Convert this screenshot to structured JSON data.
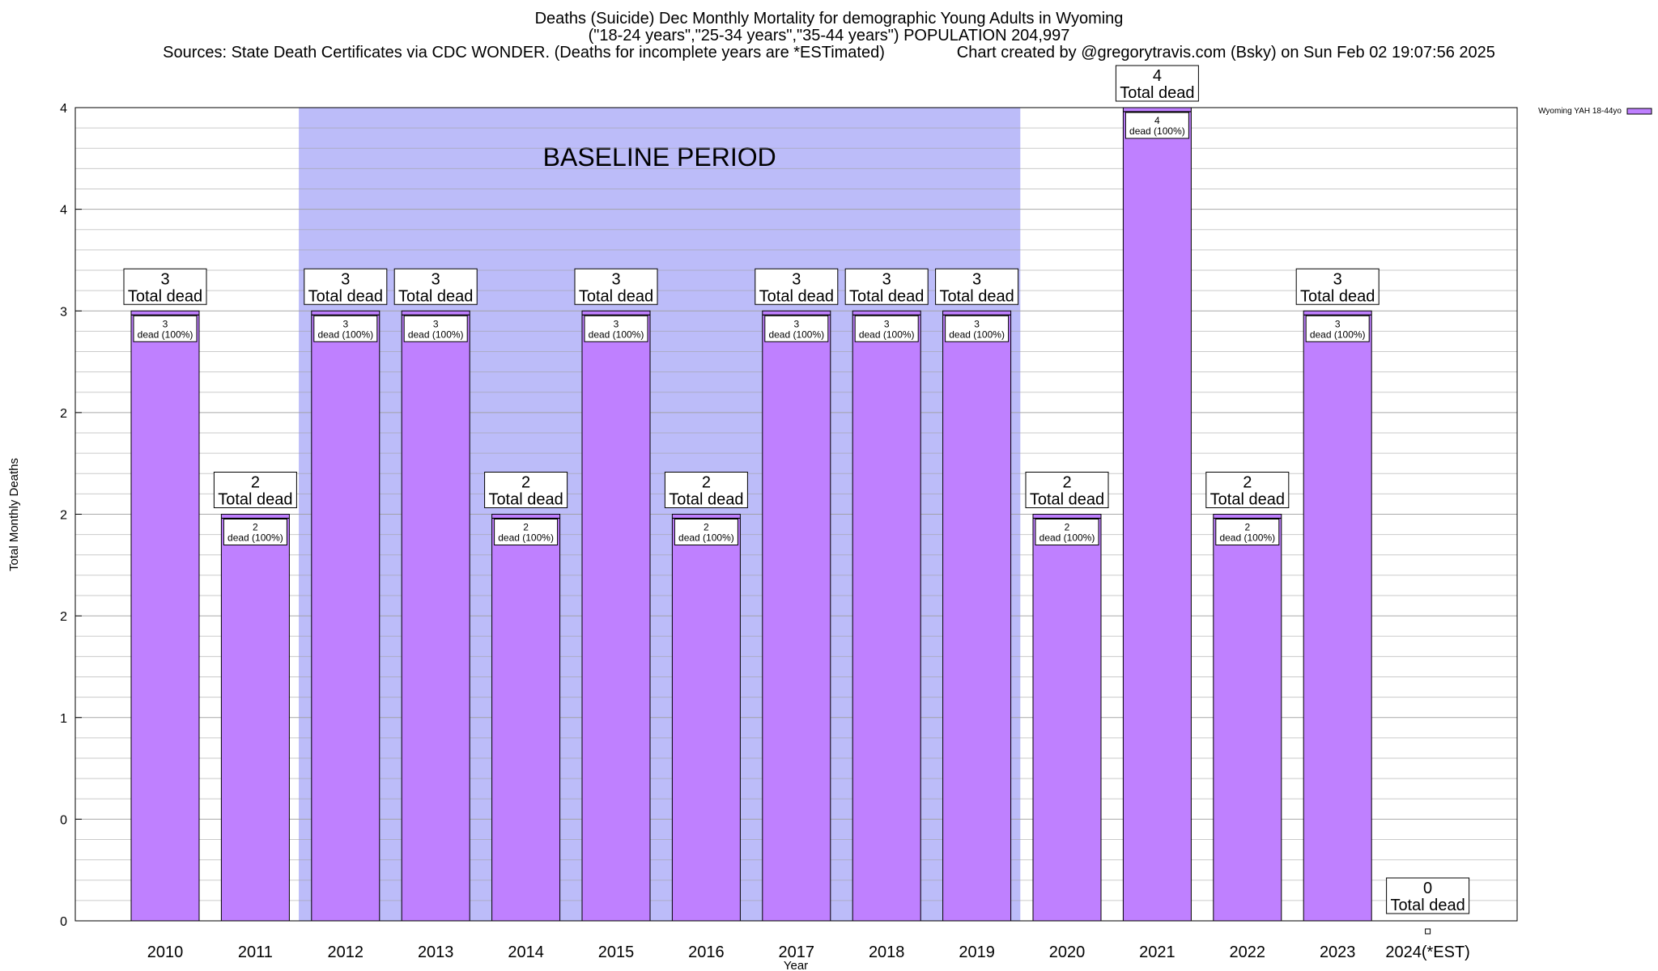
{
  "title": {
    "line1": "Deaths (Suicide) Dec Monthly Mortality for demographic Young Adults in Wyoming",
    "line2": "(\"18-24 years\",\"25-34 years\",\"35-44 years\") POPULATION 204,997",
    "line3": "Sources: State Death Certificates via CDC WONDER. (Deaths for incomplete years are *ESTimated)                Chart created by @gregorytravis.com (Bsky) on Sun Feb 02 19:07:56 2025"
  },
  "colors": {
    "bar_fill": "#bf80ff",
    "bar_stroke": "#000000",
    "baseline_band": "#bcbcf9",
    "grid": "#a0a0a0",
    "plot_border": "#000000"
  },
  "chart_data": {
    "type": "bar",
    "title": "Deaths (Suicide) Dec Monthly Mortality for demographic Young Adults in Wyoming",
    "xlabel": "Year",
    "ylabel": "Total Monthly Deaths",
    "categories": [
      "2010",
      "2011",
      "2012",
      "2013",
      "2014",
      "2015",
      "2016",
      "2017",
      "2018",
      "2019",
      "2020",
      "2021",
      "2022",
      "2023",
      "2024(*EST)"
    ],
    "series": [
      {
        "name": "Wyoming YAH 18-44yo",
        "values": [
          3,
          2,
          3,
          3,
          2,
          3,
          2,
          3,
          3,
          3,
          2,
          4,
          2,
          3,
          0
        ]
      }
    ],
    "ylim": [
      0,
      4
    ],
    "yticks": [
      {
        "value": 0,
        "label": "0"
      },
      {
        "value": 0.5,
        "label": "0"
      },
      {
        "value": 1,
        "label": "1"
      },
      {
        "value": 1.5,
        "label": "2"
      },
      {
        "value": 2,
        "label": "2"
      },
      {
        "value": 2.5,
        "label": "2"
      },
      {
        "value": 3,
        "label": "3"
      },
      {
        "value": 3.5,
        "label": "4"
      },
      {
        "value": 4,
        "label": "4"
      }
    ],
    "total_labels": [
      {
        "count": "3",
        "caption": "Total dead"
      },
      {
        "count": "2",
        "caption": "Total dead"
      },
      {
        "count": "3",
        "caption": "Total dead"
      },
      {
        "count": "3",
        "caption": "Total dead"
      },
      {
        "count": "2",
        "caption": "Total dead"
      },
      {
        "count": "3",
        "caption": "Total dead"
      },
      {
        "count": "2",
        "caption": "Total dead"
      },
      {
        "count": "3",
        "caption": "Total dead"
      },
      {
        "count": "3",
        "caption": "Total dead"
      },
      {
        "count": "3",
        "caption": "Total dead"
      },
      {
        "count": "2",
        "caption": "Total dead"
      },
      {
        "count": "4",
        "caption": "Total dead"
      },
      {
        "count": "2",
        "caption": "Total dead"
      },
      {
        "count": "3",
        "caption": "Total dead"
      },
      {
        "count": "0",
        "caption": "Total dead"
      }
    ],
    "inner_labels": [
      {
        "count": "3",
        "caption": "dead (100%)"
      },
      {
        "count": "2",
        "caption": "dead (100%)"
      },
      {
        "count": "3",
        "caption": "dead (100%)"
      },
      {
        "count": "3",
        "caption": "dead (100%)"
      },
      {
        "count": "2",
        "caption": "dead (100%)"
      },
      {
        "count": "3",
        "caption": "dead (100%)"
      },
      {
        "count": "2",
        "caption": "dead (100%)"
      },
      {
        "count": "3",
        "caption": "dead (100%)"
      },
      {
        "count": "3",
        "caption": "dead (100%)"
      },
      {
        "count": "3",
        "caption": "dead (100%)"
      },
      {
        "count": "2",
        "caption": "dead (100%)"
      },
      {
        "count": "4",
        "caption": "dead (100%)"
      },
      {
        "count": "2",
        "caption": "dead (100%)"
      },
      {
        "count": "3",
        "caption": "dead (100%)"
      },
      null
    ],
    "baseline": {
      "label": "BASELINE PERIOD",
      "from": "2012",
      "to": "2019"
    },
    "legend": {
      "position": "top-right",
      "label": "Wyoming YAH 18-44yo"
    },
    "grid": true
  }
}
